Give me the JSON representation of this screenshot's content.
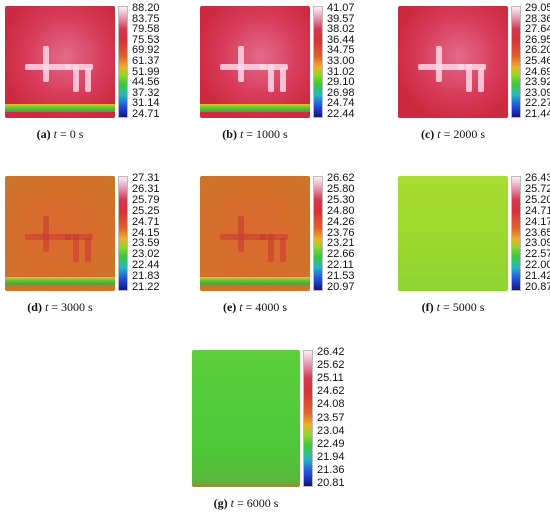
{
  "panels": [
    {
      "label": "(a)",
      "variable": "t",
      "value": "= 0 s",
      "ticks": [
        "88.20",
        "83.75",
        "79.58",
        "75.53",
        "69.92",
        "61.37",
        "51.99",
        "44.56",
        "37.32",
        "31.14",
        "24.71"
      ]
    },
    {
      "label": "(b)",
      "variable": "t",
      "value": "= 1000 s",
      "ticks": [
        "41.07",
        "39.57",
        "38.02",
        "36.44",
        "34.75",
        "33.00",
        "31.02",
        "29.10",
        "26.98",
        "24.74",
        "22.44"
      ]
    },
    {
      "label": "(c)",
      "variable": "t",
      "value": "= 2000 s",
      "ticks": [
        "29.05",
        "28.36",
        "27.64",
        "26.95",
        "26.20",
        "25.46",
        "24.69",
        "23.92",
        "23.09",
        "22.27",
        "21.44"
      ]
    },
    {
      "label": "(d)",
      "variable": "t",
      "value": "= 3000 s",
      "ticks": [
        "27.31",
        "26.31",
        "25.79",
        "25.25",
        "24.71",
        "24.15",
        "23.59",
        "23.02",
        "22.44",
        "21.83",
        "21.22"
      ]
    },
    {
      "label": "(e)",
      "variable": "t",
      "value": "= 4000 s",
      "ticks": [
        "26.62",
        "25.80",
        "25.30",
        "24.80",
        "24.26",
        "23.76",
        "23.21",
        "22.66",
        "22.11",
        "21.53",
        "20.97"
      ]
    },
    {
      "label": "(f)",
      "variable": "t",
      "value": "= 5000 s",
      "ticks": [
        "26.43",
        "25.72",
        "25.20",
        "24.71",
        "24.17",
        "23.65",
        "23.09",
        "22.57",
        "22.00",
        "21.42",
        "20.87"
      ]
    },
    {
      "label": "(g)",
      "variable": "t",
      "value": "= 6000 s",
      "ticks": [
        "26.42",
        "25.62",
        "25.11",
        "24.62",
        "24.08",
        "23.57",
        "23.04",
        "22.49",
        "21.94",
        "21.36",
        "20.81"
      ]
    }
  ]
}
